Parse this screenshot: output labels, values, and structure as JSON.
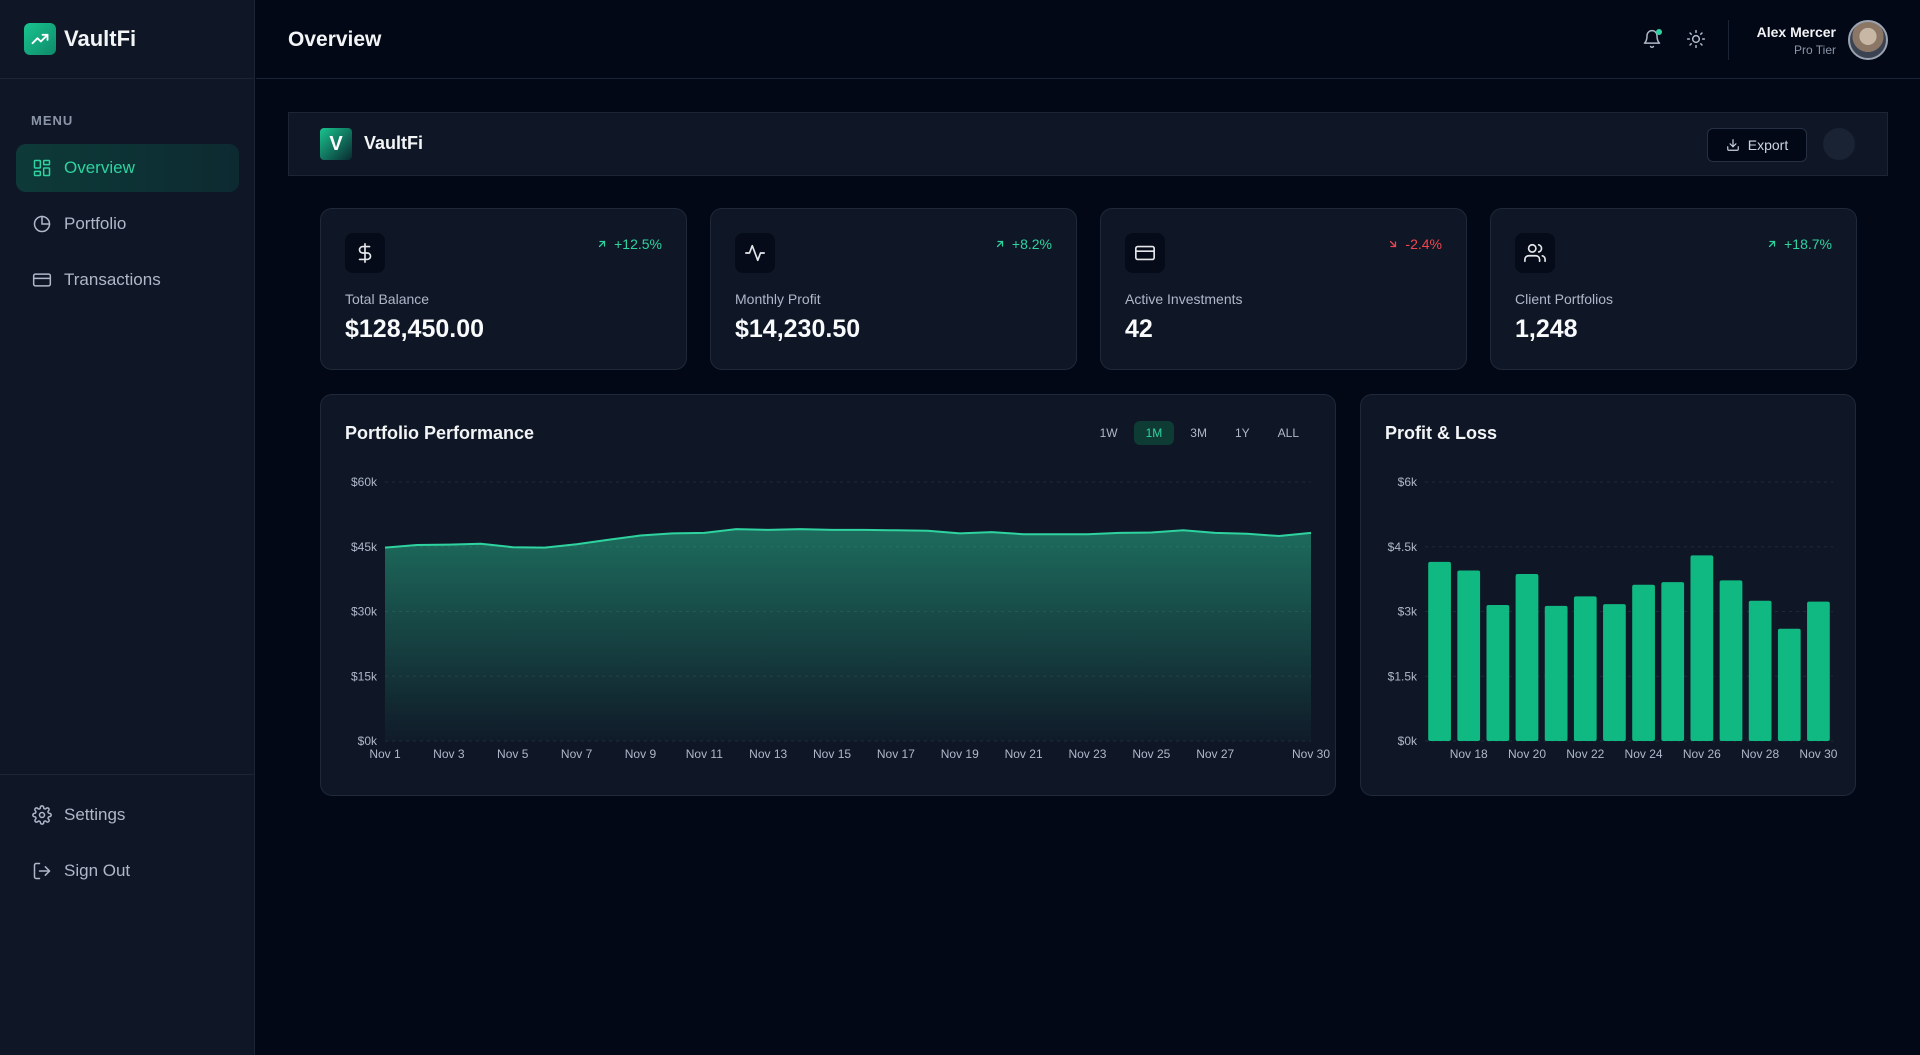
{
  "app": {
    "name": "VaultFi",
    "page_title": "Overview"
  },
  "sidebar": {
    "menu_label": "MENU",
    "items": [
      {
        "label": "Overview",
        "icon": "dashboard-icon",
        "active": true
      },
      {
        "label": "Portfolio",
        "icon": "pie-chart-icon",
        "active": false
      },
      {
        "label": "Transactions",
        "icon": "credit-card-icon",
        "active": false
      }
    ],
    "bottom_items": [
      {
        "label": "Settings",
        "icon": "gear-icon"
      },
      {
        "label": "Sign Out",
        "icon": "sign-out-icon"
      }
    ]
  },
  "user": {
    "name": "Alex Mercer",
    "tier": "Pro Tier"
  },
  "header_strip": {
    "logo_letter": "V",
    "name": "VaultFi",
    "export_label": "Export"
  },
  "stats": [
    {
      "label": "Total Balance",
      "value": "$128,450.00",
      "change": "+12.5%",
      "direction": "up",
      "icon": "dollar-icon"
    },
    {
      "label": "Monthly Profit",
      "value": "$14,230.50",
      "change": "+8.2%",
      "direction": "up",
      "icon": "activity-icon"
    },
    {
      "label": "Active Investments",
      "value": "42",
      "change": "-2.4%",
      "direction": "down",
      "icon": "credit-card-icon"
    },
    {
      "label": "Client Portfolios",
      "value": "1,248",
      "change": "+18.7%",
      "direction": "up",
      "icon": "users-icon"
    }
  ],
  "colors": {
    "accent": "#2ed3a0",
    "bar": "#10b981",
    "negative": "#f0454f",
    "card": "#0f1726",
    "background": "#030816"
  },
  "chart_data": [
    {
      "type": "area",
      "title": "Portfolio Performance",
      "ranges": [
        "1W",
        "1M",
        "3M",
        "1Y",
        "ALL"
      ],
      "active_range": "1M",
      "x": [
        "Nov 1",
        "Nov 2",
        "Nov 3",
        "Nov 4",
        "Nov 5",
        "Nov 6",
        "Nov 7",
        "Nov 8",
        "Nov 9",
        "Nov 10",
        "Nov 11",
        "Nov 12",
        "Nov 13",
        "Nov 14",
        "Nov 15",
        "Nov 16",
        "Nov 17",
        "Nov 18",
        "Nov 19",
        "Nov 20",
        "Nov 21",
        "Nov 22",
        "Nov 23",
        "Nov 24",
        "Nov 25",
        "Nov 26",
        "Nov 27",
        "Nov 28",
        "Nov 29",
        "Nov 30"
      ],
      "x_tick_labels": [
        "Nov 1",
        "Nov 3",
        "Nov 5",
        "Nov 7",
        "Nov 9",
        "Nov 11",
        "Nov 13",
        "Nov 15",
        "Nov 17",
        "Nov 19",
        "Nov 21",
        "Nov 23",
        "Nov 25",
        "Nov 27",
        "Nov 30"
      ],
      "y_tick_labels": [
        "$0k",
        "$15k",
        "$30k",
        "$45k",
        "$60k"
      ],
      "ylim": [
        0,
        60000
      ],
      "values": [
        44800,
        45400,
        45500,
        45700,
        44900,
        44800,
        45600,
        46600,
        47600,
        48100,
        48200,
        49100,
        48900,
        49100,
        48900,
        48900,
        48800,
        48700,
        48100,
        48400,
        47900,
        47900,
        47900,
        48200,
        48300,
        48800,
        48200,
        48000,
        47500,
        48200
      ],
      "grid": true
    },
    {
      "type": "bar",
      "title": "Profit & Loss",
      "categories": [
        "Nov 17",
        "Nov 18",
        "Nov 19",
        "Nov 20",
        "Nov 21",
        "Nov 22",
        "Nov 23",
        "Nov 24",
        "Nov 25",
        "Nov 26",
        "Nov 27",
        "Nov 28",
        "Nov 29",
        "Nov 30"
      ],
      "x_tick_labels": [
        "Nov 18",
        "Nov 20",
        "Nov 22",
        "Nov 24",
        "Nov 26",
        "Nov 28",
        "Nov 30"
      ],
      "y_tick_labels": [
        "$0k",
        "$1.5k",
        "$3k",
        "$4.5k",
        "$6k"
      ],
      "ylim": [
        0,
        6000
      ],
      "values": [
        4150,
        3950,
        3150,
        3870,
        3130,
        3350,
        3170,
        3620,
        3680,
        4300,
        3720,
        3250,
        2600,
        3230
      ],
      "grid": true
    }
  ]
}
